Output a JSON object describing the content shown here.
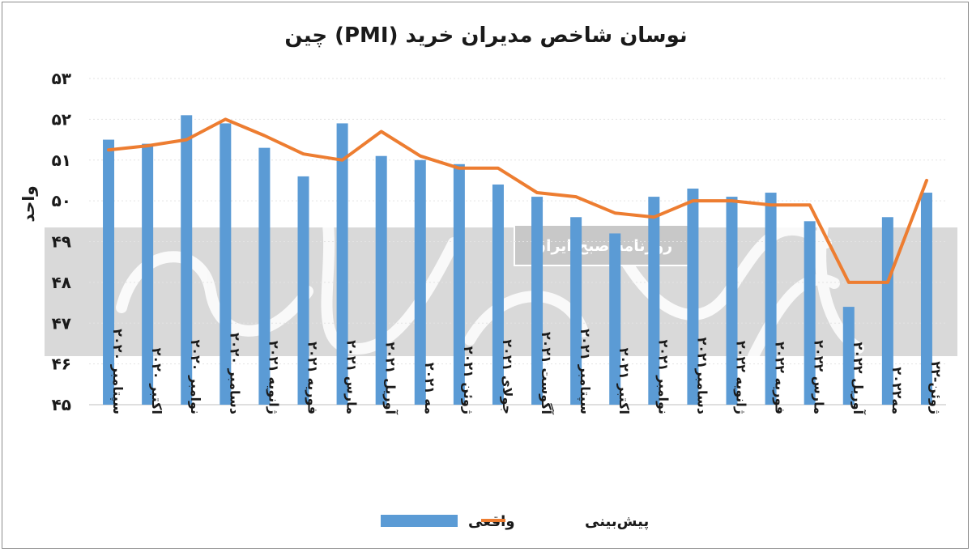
{
  "chart_data": {
    "type": "bar",
    "title": "نوسان شاخص مدیران خرید (PMI) چین",
    "ylabel": "واحد",
    "ylim": [
      45,
      53
    ],
    "yticks": [
      "۴۵",
      "۴۶",
      "۴۷",
      "۴۸",
      "۴۹",
      "۵۰",
      "۵۱",
      "۵۲",
      "۵۳"
    ],
    "grid": true,
    "legend_position": "bottom-center",
    "categories": [
      "سپتامبر ۲۰۲۰",
      "اکتبر ۲۰۲۰",
      "نوامبر ۲۰۲۰",
      "دسامبر ۲۰۲۰",
      "ژانویه ۲۰۲۱",
      "فوریه ۲۰۲۱",
      "مارس ۲۰۲۱",
      "آوریل ۲۰۲۱",
      "مه ۲۰۲۱",
      "ژوئن ۲۰۲۱",
      "جولای ۲۰۲۱",
      "آگوست ۲۰۲۱",
      "سپتامبر ۲۰۲۱",
      "اکتبر ۲۰۲۱",
      "نوامبر ۲۰۲۱",
      "دسامبر۲۰۲۱",
      "ژانویه ۲۰۲۲",
      "فوریه ۲۰۲۲",
      "مارس ۲۰۲۲",
      "آوریل ۲۰۲۲",
      "مه۲۰۲۲",
      "ژوئن-۲۲"
    ],
    "series": [
      {
        "name": "واقعی",
        "type": "bar",
        "color": "#5b9bd5",
        "values": [
          51.5,
          51.4,
          52.1,
          51.9,
          51.3,
          50.6,
          51.9,
          51.1,
          51.0,
          50.9,
          50.4,
          50.1,
          49.6,
          49.2,
          50.1,
          50.3,
          50.1,
          50.2,
          49.5,
          47.4,
          49.6,
          50.2
        ]
      },
      {
        "name": "پیش‌بینی",
        "type": "line",
        "color": "#ed7d31",
        "values": [
          51.25,
          51.35,
          51.5,
          52.0,
          51.6,
          51.15,
          51.0,
          51.7,
          51.1,
          50.8,
          50.8,
          50.2,
          50.1,
          49.7,
          49.6,
          50.0,
          50.0,
          49.9,
          49.9,
          48.0,
          48.0,
          50.5
        ]
      }
    ]
  },
  "watermark": {
    "text": "روزنامه صبح ایران"
  }
}
